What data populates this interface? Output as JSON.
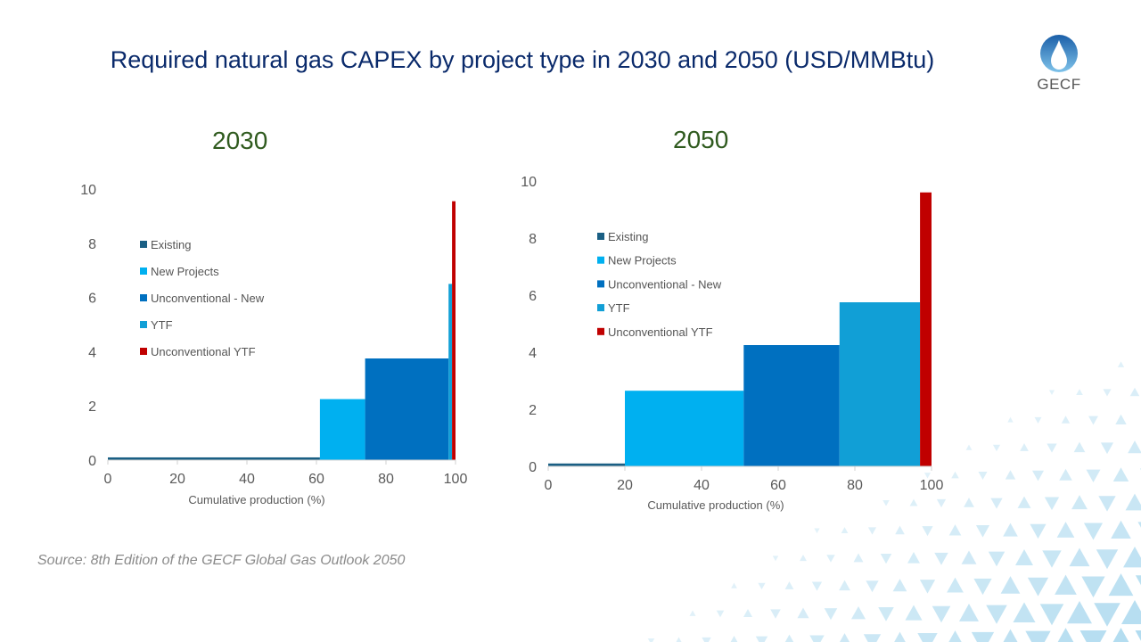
{
  "title": "Required natural gas CAPEX by project type in 2030 and 2050 (USD/MMBtu)",
  "logo_text": "GECF",
  "source": "Source: 8th Edition of the GECF Global Gas Outlook 2050",
  "chart_data": [
    {
      "type": "bar",
      "title": "2030",
      "xlabel": "Cumulative production  (%)",
      "ylabel": "",
      "xlim": [
        0,
        100
      ],
      "ylim": [
        0,
        10
      ],
      "xticks": [
        "0",
        "20",
        "40",
        "60",
        "80",
        "100"
      ],
      "yticks": [
        "0",
        "2",
        "4",
        "6",
        "8",
        "10"
      ],
      "legend_position": "upper-left",
      "grid": false,
      "series": [
        {
          "name": "Existing",
          "color": "#1a5f84",
          "x_start": 0,
          "x_end": 61,
          "value": 0.1
        },
        {
          "name": "New Projects",
          "color": "#00b0f0",
          "x_start": 61,
          "x_end": 74,
          "value": 2.25
        },
        {
          "name": "Unconventional - New",
          "color": "#0070c0",
          "x_start": 74,
          "x_end": 98,
          "value": 3.75
        },
        {
          "name": "YTF",
          "color": "#119fd6",
          "x_start": 98,
          "x_end": 99,
          "value": 6.5
        },
        {
          "name": "Unconventional YTF",
          "color": "#c00000",
          "x_start": 99,
          "x_end": 100,
          "value": 9.55
        }
      ]
    },
    {
      "type": "bar",
      "title": "2050",
      "xlabel": "Cumulative production  (%)",
      "ylabel": "",
      "xlim": [
        0,
        100
      ],
      "ylim": [
        0,
        10
      ],
      "xticks": [
        "0",
        "20",
        "40",
        "60",
        "80",
        "100"
      ],
      "yticks": [
        "0",
        "2",
        "4",
        "6",
        "8",
        "10"
      ],
      "legend_position": "upper-left",
      "grid": false,
      "series": [
        {
          "name": "Existing",
          "color": "#1a5f84",
          "x_start": 0,
          "x_end": 20,
          "value": 0.1
        },
        {
          "name": "New Projects",
          "color": "#00b0f0",
          "x_start": 20,
          "x_end": 51,
          "value": 2.65
        },
        {
          "name": "Unconventional - New",
          "color": "#0070c0",
          "x_start": 51,
          "x_end": 76,
          "value": 4.25
        },
        {
          "name": "YTF",
          "color": "#119fd6",
          "x_start": 76,
          "x_end": 97,
          "value": 5.75
        },
        {
          "name": "Unconventional YTF",
          "color": "#c00000",
          "x_start": 97,
          "x_end": 100,
          "value": 9.6
        }
      ]
    }
  ]
}
